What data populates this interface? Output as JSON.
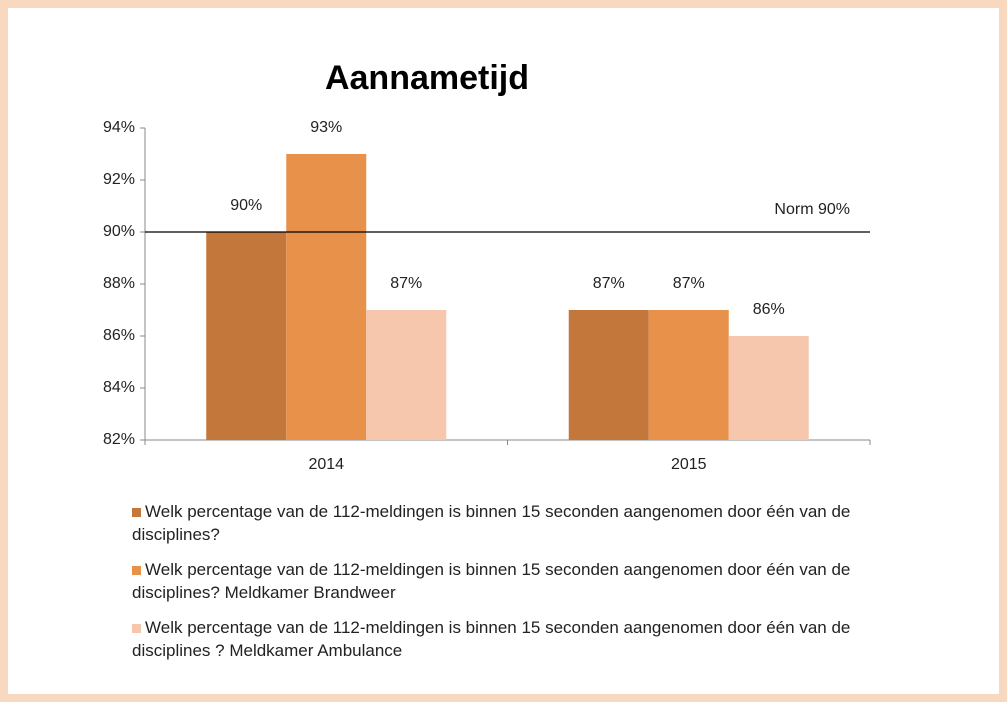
{
  "chart_data": {
    "type": "bar",
    "title": "Aannametijd",
    "categories": [
      "2014",
      "2015"
    ],
    "series": [
      {
        "name": "Welk percentage van de 112-meldingen is binnen 15 seconden aangenomen door één van de disciplines?",
        "color": "#c4773b",
        "values": [
          90,
          87
        ],
        "value_labels": [
          "90%",
          "87%"
        ]
      },
      {
        "name": "Welk percentage van de 112-meldingen is binnen 15 seconden aangenomen door één van de disciplines? Meldkamer Brandweer",
        "color": "#e8914b",
        "values": [
          93,
          87
        ],
        "value_labels": [
          "93%",
          "87%"
        ]
      },
      {
        "name": "Welk percentage van de 112-meldingen is binnen 15 seconden aangenomen door één van de disciplines ? Meldkamer Ambulance",
        "color": "#f6c7ad",
        "values": [
          87,
          86
        ],
        "value_labels": [
          "87%",
          "86%"
        ]
      }
    ],
    "ylim": [
      82,
      94
    ],
    "yticks": [
      {
        "value": 82,
        "label": "82%"
      },
      {
        "value": 84,
        "label": "84%"
      },
      {
        "value": 86,
        "label": "86%"
      },
      {
        "value": 88,
        "label": "88%"
      },
      {
        "value": 90,
        "label": "90%"
      },
      {
        "value": 92,
        "label": "92%"
      },
      {
        "value": 94,
        "label": "94%"
      }
    ],
    "reference_line": {
      "value": 90,
      "label": "Norm 90%"
    },
    "legend": "bottom"
  }
}
